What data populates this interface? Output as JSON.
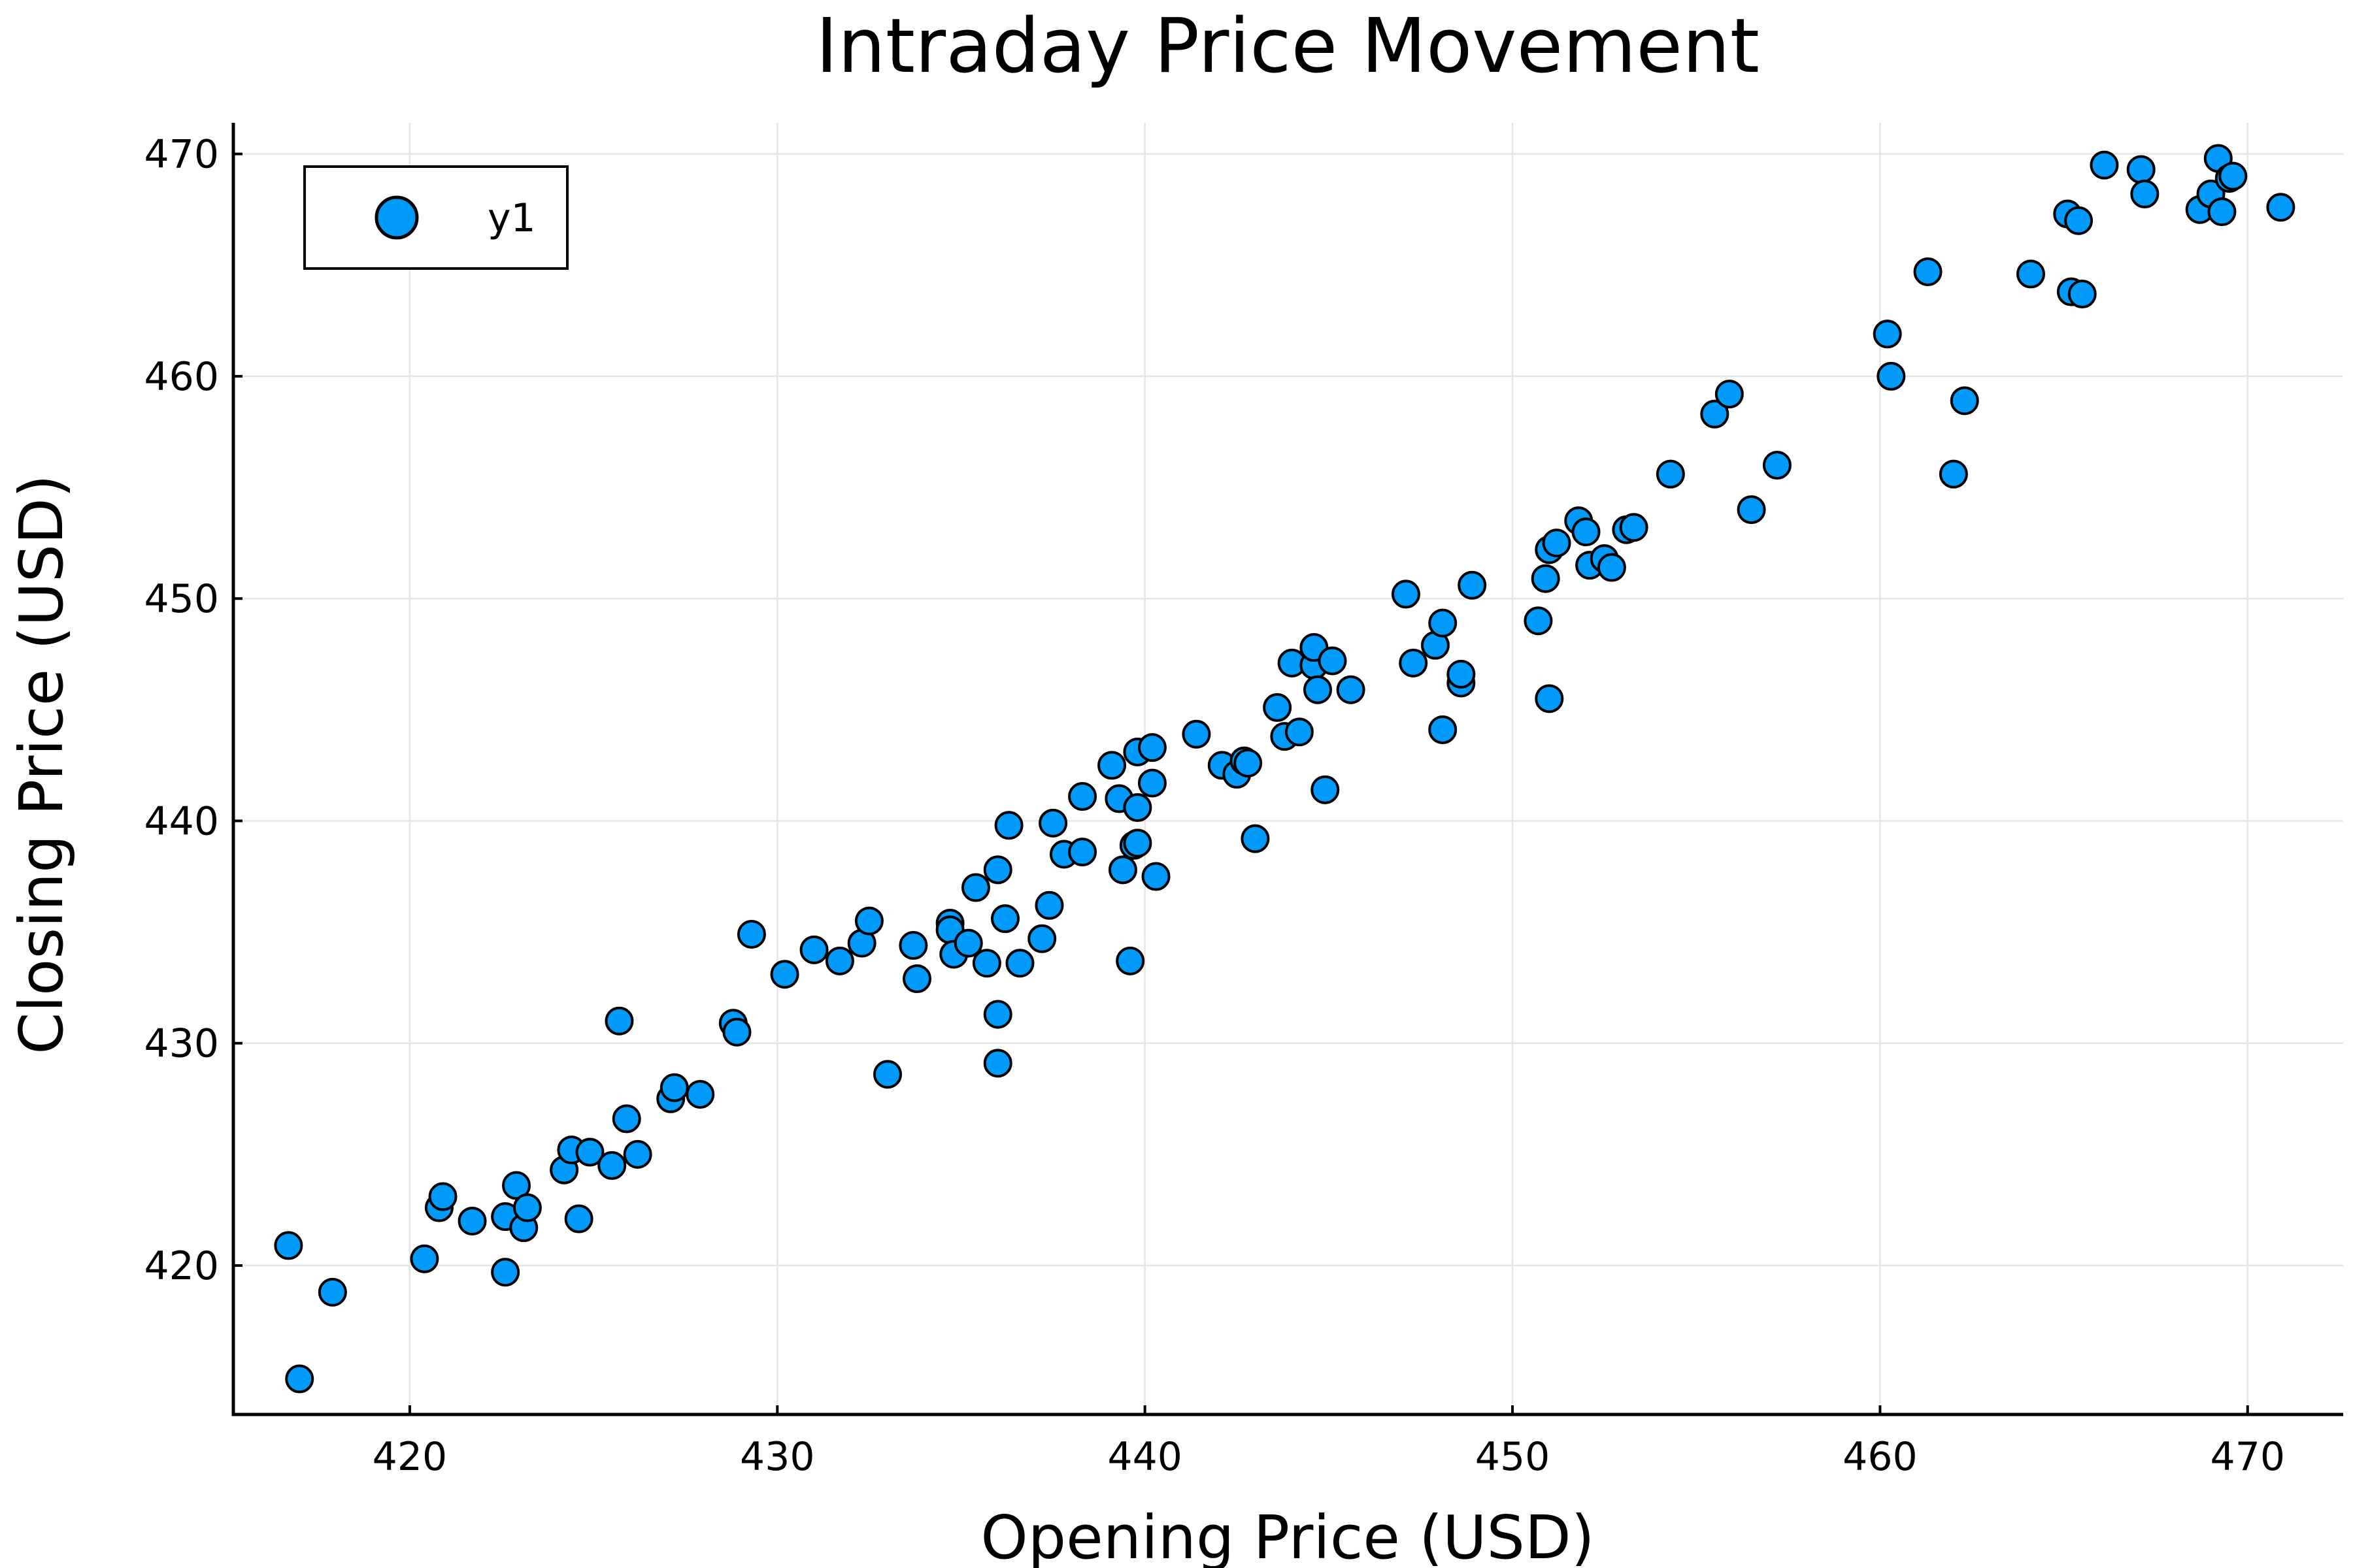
{
  "chart_data": {
    "type": "scatter",
    "title": "Intraday Price Movement",
    "xlabel": "Opening Price (USD)",
    "ylabel": "Closing Price (USD)",
    "xlim": [
      415.2,
      472.6
    ],
    "ylim": [
      413.3,
      471.4
    ],
    "xticks": [
      420,
      430,
      440,
      450,
      460,
      470
    ],
    "yticks": [
      420,
      430,
      440,
      450,
      460,
      470
    ],
    "grid": true,
    "legend": {
      "position": "top-left"
    },
    "marker_color": "#009AFA",
    "series": [
      {
        "name": "y1",
        "points": [
          [
            416.7,
            420.9
          ],
          [
            417.0,
            414.9
          ],
          [
            417.9,
            418.8
          ],
          [
            420.4,
            420.3
          ],
          [
            420.8,
            422.6
          ],
          [
            420.9,
            423.1
          ],
          [
            421.7,
            422.0
          ],
          [
            422.6,
            419.7
          ],
          [
            422.6,
            422.2
          ],
          [
            422.9,
            423.6
          ],
          [
            423.1,
            421.7
          ],
          [
            423.2,
            422.6
          ],
          [
            424.2,
            424.3
          ],
          [
            424.4,
            425.2
          ],
          [
            424.6,
            422.1
          ],
          [
            424.9,
            425.1
          ],
          [
            425.5,
            424.5
          ],
          [
            425.7,
            431.0
          ],
          [
            425.9,
            426.6
          ],
          [
            426.2,
            425.0
          ],
          [
            427.1,
            427.5
          ],
          [
            427.2,
            428.0
          ],
          [
            427.9,
            427.7
          ],
          [
            428.8,
            430.9
          ],
          [
            428.9,
            430.5
          ],
          [
            429.3,
            434.9
          ],
          [
            430.2,
            433.1
          ],
          [
            431.0,
            434.2
          ],
          [
            431.7,
            433.7
          ],
          [
            432.3,
            434.5
          ],
          [
            432.5,
            435.5
          ],
          [
            433.0,
            428.6
          ],
          [
            433.7,
            434.4
          ],
          [
            433.8,
            432.9
          ],
          [
            434.7,
            435.4
          ],
          [
            434.7,
            435.1
          ],
          [
            434.8,
            434.0
          ],
          [
            435.2,
            434.5
          ],
          [
            435.4,
            437.0
          ],
          [
            435.7,
            433.6
          ],
          [
            436.0,
            437.8
          ],
          [
            436.0,
            431.3
          ],
          [
            436.0,
            429.1
          ],
          [
            436.2,
            435.6
          ],
          [
            436.3,
            439.8
          ],
          [
            436.6,
            433.6
          ],
          [
            437.2,
            434.7
          ],
          [
            437.4,
            436.2
          ],
          [
            437.5,
            439.9
          ],
          [
            437.8,
            438.5
          ],
          [
            438.3,
            441.1
          ],
          [
            438.3,
            438.6
          ],
          [
            439.1,
            442.5
          ],
          [
            439.3,
            441.0
          ],
          [
            439.4,
            437.8
          ],
          [
            439.6,
            433.7
          ],
          [
            439.7,
            438.9
          ],
          [
            439.8,
            439.0
          ],
          [
            439.8,
            440.6
          ],
          [
            439.8,
            443.1
          ],
          [
            440.2,
            441.7
          ],
          [
            440.2,
            443.3
          ],
          [
            440.3,
            437.5
          ],
          [
            441.4,
            443.9
          ],
          [
            442.1,
            442.5
          ],
          [
            442.5,
            442.1
          ],
          [
            442.7,
            442.7
          ],
          [
            442.8,
            442.6
          ],
          [
            443.0,
            439.2
          ],
          [
            443.6,
            445.1
          ],
          [
            443.8,
            443.8
          ],
          [
            444.0,
            447.1
          ],
          [
            444.2,
            444.0
          ],
          [
            444.6,
            447.0
          ],
          [
            444.6,
            447.8
          ],
          [
            444.7,
            445.9
          ],
          [
            444.9,
            441.4
          ],
          [
            445.1,
            447.2
          ],
          [
            445.6,
            445.9
          ],
          [
            447.1,
            450.2
          ],
          [
            447.3,
            447.1
          ],
          [
            447.9,
            447.9
          ],
          [
            448.1,
            444.1
          ],
          [
            448.1,
            448.9
          ],
          [
            448.6,
            446.2
          ],
          [
            448.6,
            446.6
          ],
          [
            448.9,
            450.6
          ],
          [
            450.7,
            449.0
          ],
          [
            450.9,
            450.9
          ],
          [
            451.0,
            452.2
          ],
          [
            451.0,
            445.5
          ],
          [
            451.2,
            452.5
          ],
          [
            451.8,
            453.5
          ],
          [
            452.0,
            453.0
          ],
          [
            452.1,
            451.5
          ],
          [
            452.5,
            451.8
          ],
          [
            452.7,
            451.4
          ],
          [
            453.1,
            453.1
          ],
          [
            453.3,
            453.2
          ],
          [
            454.3,
            455.6
          ],
          [
            455.5,
            458.3
          ],
          [
            455.9,
            459.2
          ],
          [
            456.5,
            454.0
          ],
          [
            457.2,
            456.0
          ],
          [
            460.2,
            461.9
          ],
          [
            460.3,
            460.0
          ],
          [
            461.3,
            464.7
          ],
          [
            462.0,
            455.6
          ],
          [
            462.3,
            458.9
          ],
          [
            464.1,
            464.6
          ],
          [
            465.1,
            467.3
          ],
          [
            465.2,
            463.8
          ],
          [
            465.4,
            467.0
          ],
          [
            465.5,
            463.7
          ],
          [
            466.1,
            469.5
          ],
          [
            467.1,
            469.3
          ],
          [
            467.2,
            468.2
          ],
          [
            468.7,
            467.5
          ],
          [
            469.0,
            468.2
          ],
          [
            469.2,
            469.8
          ],
          [
            469.3,
            467.4
          ],
          [
            469.5,
            468.9
          ],
          [
            469.6,
            469.0
          ],
          [
            470.9,
            467.6
          ]
        ]
      }
    ]
  }
}
